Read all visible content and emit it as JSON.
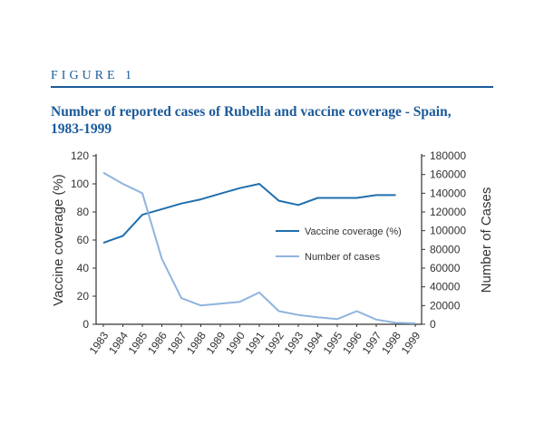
{
  "figure": {
    "label": "Figure 1",
    "title_line1": "Number of reported cases of Rubella and vaccine coverage - Spain,",
    "title_line2": "1983-1999"
  },
  "colors": {
    "title": "#1a5a9a",
    "vaccine": "#1f6fae",
    "cases": "#8fb4de",
    "axis": "#333333"
  },
  "chart_data": {
    "type": "line",
    "title": "Number of reported cases of Rubella and vaccine coverage - Spain, 1983-1999",
    "xlabel": "",
    "ylabel_left": "Vaccine coverage (%)",
    "ylabel_right": "Number of Cases",
    "ylim_left": [
      0,
      120
    ],
    "ylim_right": [
      0,
      180000
    ],
    "yticks_left": [
      "0",
      "20",
      "40",
      "60",
      "80",
      "100",
      "120"
    ],
    "yticks_right": [
      "0",
      "20000",
      "40000",
      "60000",
      "80000",
      "100000",
      "120000",
      "140000",
      "160000",
      "180000"
    ],
    "categories": [
      "1983",
      "1984",
      "1985",
      "1986",
      "1987",
      "1988",
      "1989",
      "1990",
      "1991",
      "1992",
      "1993",
      "1994",
      "1995",
      "1996",
      "1997",
      "1998",
      "1999"
    ],
    "legend_position": "right",
    "grid": false,
    "series": [
      {
        "name": "Vaccine coverage (%)",
        "axis": "left",
        "values": [
          58,
          63,
          78,
          82,
          86,
          89,
          93,
          97,
          100,
          88,
          85,
          90,
          90,
          90,
          92,
          92,
          null
        ]
      },
      {
        "name": "Number of cases",
        "axis": "right",
        "values": [
          162000,
          150000,
          140000,
          70000,
          28000,
          20000,
          22000,
          24000,
          34000,
          14000,
          10000,
          7500,
          5500,
          14000,
          5000,
          1500,
          1000
        ]
      }
    ]
  }
}
